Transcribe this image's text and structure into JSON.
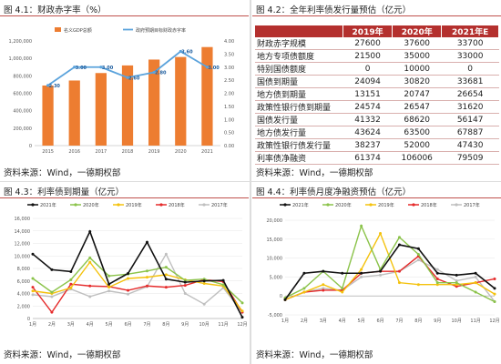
{
  "panel1": {
    "title": "图 4.1：财政赤字率（%）",
    "source": "资料来源：Wind，一德期权部"
  },
  "panel2": {
    "title": "图 4.2：全年利率债发行量预估（亿元）",
    "source": "资料来源：Wind，一德期权部",
    "header": [
      "",
      "2019年",
      "2020年",
      "2021年E"
    ],
    "rows": [
      {
        "label": "财政赤字规模",
        "values": [
          "27600",
          "37600",
          "33700"
        ]
      },
      {
        "label": "地方专项债额度",
        "values": [
          "21500",
          "35000",
          "33000"
        ]
      },
      {
        "label": "特别国债额度",
        "values": [
          "0",
          "10000",
          "0"
        ]
      },
      {
        "label": "国债到期量",
        "values": [
          "24094",
          "30820",
          "33681"
        ]
      },
      {
        "label": "地方债到期量",
        "values": [
          "13151",
          "20747",
          "26654"
        ]
      },
      {
        "label": "政策性银行债到期量",
        "values": [
          "24574",
          "26547",
          "31620"
        ]
      },
      {
        "label": "国债发行量",
        "values": [
          "41332",
          "68620",
          "56147"
        ]
      },
      {
        "label": "地方债发行量",
        "values": [
          "43624",
          "63500",
          "67887"
        ]
      },
      {
        "label": "政策性银行债发行量",
        "values": [
          "38237",
          "52000",
          "47430"
        ]
      },
      {
        "label": "利率债净融资",
        "values": [
          "61374",
          "106006",
          "79509"
        ]
      }
    ]
  },
  "panel3": {
    "title": "图 4.3：利率债到期量（亿元）",
    "source": "资料来源：Wind，一德期权部"
  },
  "panel4": {
    "title": "图 4.4：利率债月度净融资预估（亿元）",
    "source": "资料来源：Wind，一德期权部"
  },
  "chart_data": [
    {
      "type": "bar",
      "categories": [
        "2015",
        "2016",
        "2017",
        "2018",
        "2019",
        "2020",
        "2021"
      ],
      "series": [
        {
          "name": "名义GDP总额",
          "axis": "left",
          "values": [
            688858,
            746395,
            832036,
            919281,
            986515,
            1015986,
            1130000
          ],
          "color": "#ed7d31"
        },
        {
          "name": "政府预期目标财政赤字率",
          "axis": "right",
          "type": "line",
          "values": [
            2.3,
            3.0,
            3.0,
            2.6,
            2.8,
            3.6,
            3.0
          ],
          "color": "#5ba3dc"
        }
      ],
      "data_labels": [
        "2.30",
        "3.00",
        "3.00",
        "2.60",
        "2.80",
        "3.60",
        "3.00"
      ],
      "ylim": [
        0,
        1200000
      ],
      "yticks": [
        "0",
        "200,000",
        "400,000",
        "600,000",
        "800,000",
        "1,000,000",
        "1,200,000"
      ],
      "y2lim": [
        0,
        4
      ],
      "y2ticks": [
        "0.00",
        "0.50",
        "1.00",
        "1.50",
        "2.00",
        "2.50",
        "3.00",
        "3.50",
        "4.00"
      ],
      "legend": "top"
    },
    {
      "type": "line",
      "categories": [
        "1月",
        "2月",
        "3月",
        "4月",
        "5月",
        "6月",
        "7月",
        "8月",
        "9月",
        "10月",
        "11月",
        "12月"
      ],
      "series": [
        {
          "name": "2021年",
          "color": "#111111",
          "values": [
            10300,
            7800,
            7500,
            13900,
            5500,
            7200,
            12200,
            6300,
            5800,
            6000,
            6100,
            200
          ]
        },
        {
          "name": "2020年",
          "color": "#8bc34a",
          "values": [
            6400,
            4200,
            6200,
            9700,
            6800,
            7100,
            7600,
            8200,
            6100,
            6300,
            5400,
            2500
          ]
        },
        {
          "name": "2019年",
          "color": "#f4c20d",
          "values": [
            4400,
            4000,
            4900,
            9000,
            5000,
            6400,
            6600,
            7000,
            6200,
            5600,
            5200,
            1200
          ]
        },
        {
          "name": "2018年",
          "color": "#e52a2a",
          "values": [
            5000,
            1000,
            5500,
            5200,
            5100,
            4500,
            5200,
            5000,
            5300,
            6200,
            5900,
            1000
          ]
        },
        {
          "name": "2017年",
          "color": "#bfbfbf",
          "values": [
            3800,
            3500,
            4700,
            3500,
            4400,
            3900,
            5100,
            10300,
            4000,
            2300,
            4900,
            1000
          ]
        }
      ],
      "ylim": [
        0,
        16000
      ],
      "yticks": [
        "0",
        "2,000",
        "4,000",
        "6,000",
        "8,000",
        "10,000",
        "12,000",
        "14,000",
        "16,000"
      ],
      "legend": "top"
    },
    {
      "type": "line",
      "categories": [
        "1月",
        "2月",
        "3月",
        "4月",
        "5月",
        "6月",
        "7月",
        "8月",
        "9月",
        "10月",
        "11月",
        "12月"
      ],
      "series": [
        {
          "name": "2021年",
          "color": "#111111",
          "values": [
            -1000,
            6000,
            6500,
            6000,
            6000,
            6500,
            13500,
            12500,
            6000,
            5500,
            6000,
            2000
          ]
        },
        {
          "name": "2020年",
          "color": "#8bc34a",
          "values": [
            -500,
            2000,
            6500,
            2000,
            18500,
            7000,
            15500,
            11000,
            3500,
            3500,
            1000,
            -1500
          ]
        },
        {
          "name": "2019年",
          "color": "#f4c20d",
          "values": [
            -1000,
            1000,
            3000,
            1000,
            7000,
            16500,
            3500,
            3000,
            3000,
            3000,
            3500,
            500
          ]
        },
        {
          "name": "2018年",
          "color": "#e52a2a",
          "values": [
            -1000,
            1000,
            1500,
            1500,
            6000,
            6500,
            6500,
            10500,
            4500,
            2500,
            3500,
            4500
          ]
        },
        {
          "name": "2017年",
          "color": "#bfbfbf",
          "values": [
            -1000,
            1000,
            2000,
            1500,
            5000,
            5500,
            6500,
            9500,
            7000,
            4000,
            5000,
            -1500
          ]
        }
      ],
      "ylim": [
        -5000,
        20000
      ],
      "yticks": [
        "-5,000",
        "0",
        "5,000",
        "10,000",
        "15,000",
        "20,000"
      ],
      "legend": "top"
    }
  ]
}
